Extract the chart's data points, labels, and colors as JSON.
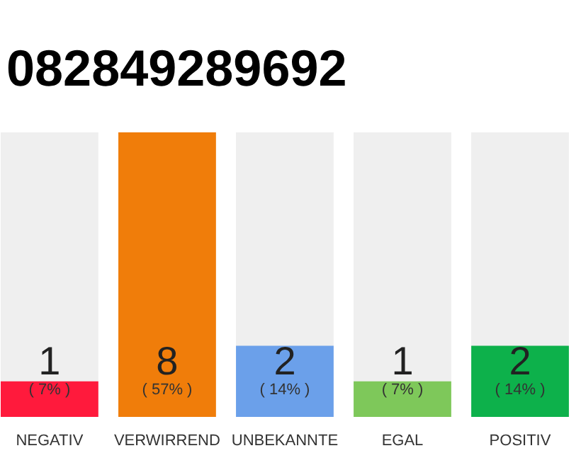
{
  "chart_data": {
    "type": "bar",
    "title": "082849289692",
    "categories": [
      "NEGATIV",
      "VERWIRREND",
      "UNBEKANNTE",
      "EGAL",
      "POSITIV"
    ],
    "values": [
      1,
      8,
      2,
      1,
      2
    ],
    "colors": [
      "#ff1a3c",
      "#f07d0a",
      "#6ba0ea",
      "#7ec85a",
      "#0db14b"
    ],
    "data_labels": true,
    "annotations": [
      "( 7% )",
      "( 57% )",
      "( 14% )",
      "( 7% )",
      "( 14% )"
    ]
  }
}
